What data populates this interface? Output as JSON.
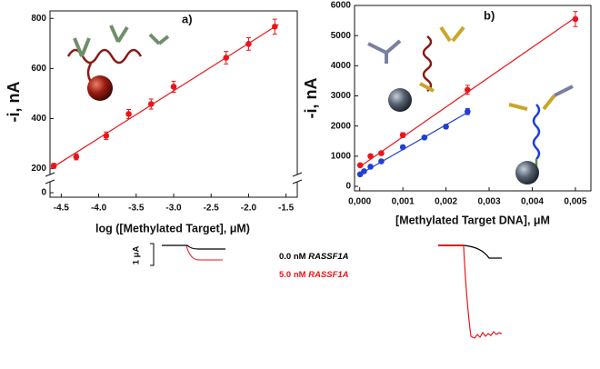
{
  "chart_data": [
    {
      "type": "scatter",
      "annotation": "a)",
      "x_label": "log ([Methylated Target], μM)",
      "y_label": "-i, nA",
      "xlim": [
        -4.65,
        -1.35
      ],
      "ylim": [
        -18,
        830
      ],
      "y_break": [
        40,
        180
      ],
      "xticks": [
        -4.5,
        {
          "value": -4,
          "label": "-4.0"
        },
        -3.5,
        {
          "value": -3,
          "label": "-3.0"
        },
        -2.5,
        {
          "value": -2,
          "label": "-2.0"
        },
        -1.5
      ],
      "yticks": [
        0,
        200,
        400,
        600,
        800
      ],
      "series": [
        {
          "color": "#e8161b",
          "x": [
            -4.6,
            -4.3,
            -3.9,
            -3.6,
            -3.3,
            -3.0,
            -2.3,
            -2.0,
            -1.65
          ],
          "values": [
            211,
            247,
            331,
            418,
            458,
            527,
            643,
            698,
            767
          ],
          "errors": [
            10,
            12,
            15,
            18,
            20,
            22,
            25,
            25,
            30
          ],
          "fit_x": [
            -4.65,
            -1.6
          ],
          "fit_values": [
            198,
            776
          ]
        }
      ]
    },
    {
      "type": "scatter",
      "annotation": "b)",
      "x_label": "[Methylated Target DNA], μM",
      "y_label": "-i, nA",
      "xlim": [
        -0.00012,
        0.00536
      ],
      "ylim": [
        -150,
        6000
      ],
      "xticks": [
        {
          "value": 0,
          "label": "0,000"
        },
        {
          "value": 0.001,
          "label": "0,001"
        },
        {
          "value": 0.002,
          "label": "0,002"
        },
        {
          "value": 0.003,
          "label": "0,003"
        },
        {
          "value": 0.004,
          "label": "0,004"
        },
        {
          "value": 0.005,
          "label": "0,005"
        }
      ],
      "yticks": [
        0,
        1000,
        2000,
        3000,
        4000,
        5000,
        6000
      ],
      "series": [
        {
          "color": "#e8161b",
          "x": [
            1e-05,
            0.00025,
            0.0005,
            0.001,
            0.0025,
            0.005
          ],
          "values": [
            700,
            1000,
            1100,
            1700,
            3200,
            5550
          ],
          "errors": [
            60,
            60,
            60,
            80,
            150,
            250
          ],
          "fit_x": [
            0,
            0.005
          ],
          "fit_values": [
            650,
            5600
          ]
        },
        {
          "color": "#1f3fd6",
          "x": [
            1e-05,
            0.0001,
            0.00025,
            0.0005,
            0.001,
            0.0015,
            0.002,
            0.0025
          ],
          "values": [
            400,
            500,
            650,
            830,
            1300,
            1620,
            1980,
            2480
          ],
          "errors": [
            40,
            40,
            40,
            50,
            60,
            60,
            70,
            100
          ],
          "fit_x": [
            0,
            0.0025
          ],
          "fit_values": [
            400,
            2450
          ]
        }
      ]
    }
  ],
  "inset": {
    "scale_label": "1 μA",
    "legend": [
      {
        "text": "0.0 nM",
        "gene": "RASSF1A",
        "color": "#000000"
      },
      {
        "text": "5.0 nM",
        "gene": "RASSF1A",
        "color": "#e8161b"
      }
    ]
  }
}
